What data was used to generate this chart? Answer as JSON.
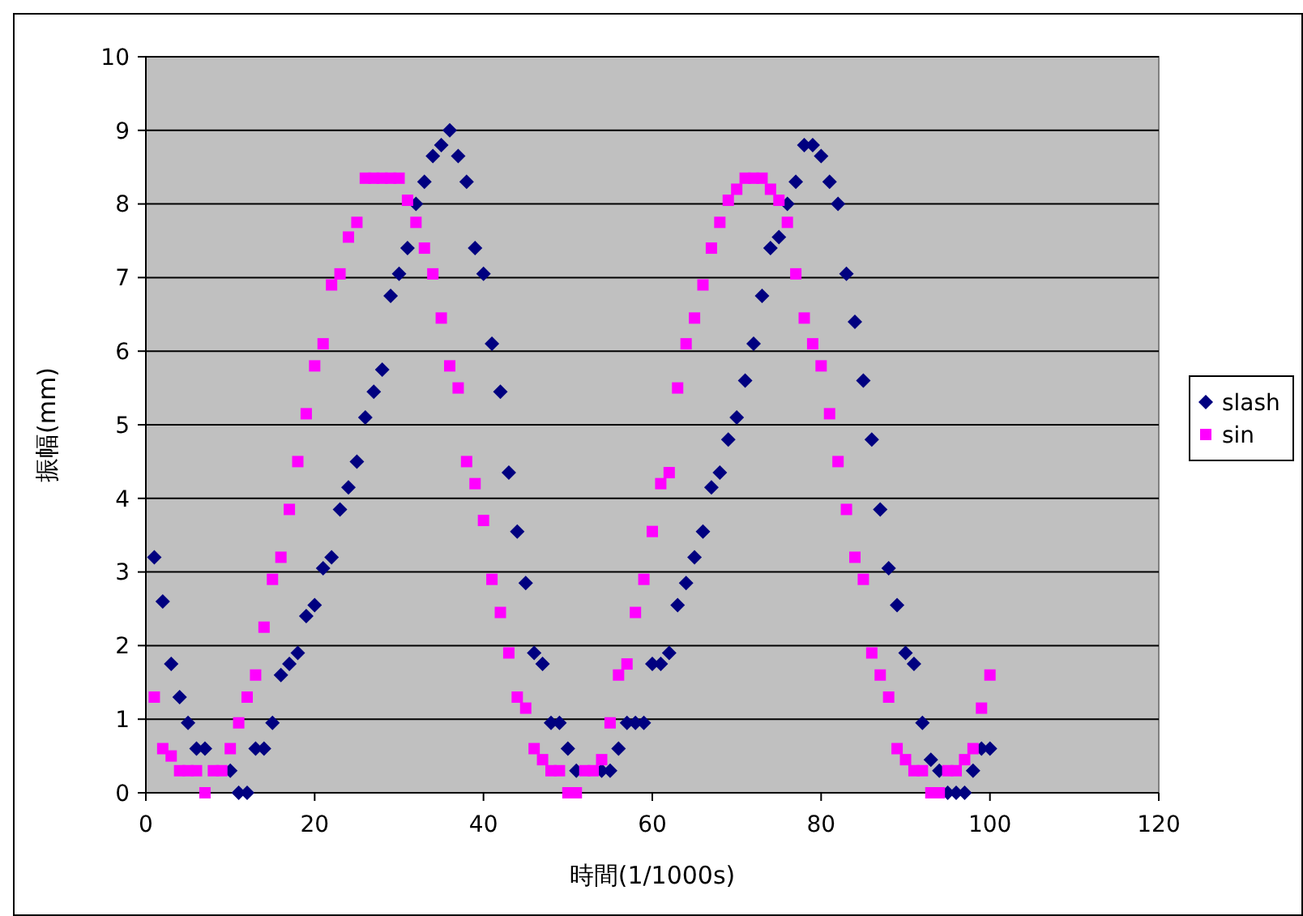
{
  "chart_data": {
    "type": "scatter",
    "xlabel": "時間(1/1000s)",
    "ylabel": "振幅(mm)",
    "xlim": [
      0,
      120
    ],
    "xticks": [
      0,
      20,
      40,
      60,
      80,
      100,
      120
    ],
    "ylim": [
      0,
      10
    ],
    "yticks": [
      0,
      1,
      2,
      3,
      4,
      5,
      6,
      7,
      8,
      9,
      10
    ],
    "grid": "y",
    "legend": "right",
    "x": [
      1,
      2,
      3,
      4,
      5,
      6,
      7,
      8,
      9,
      10,
      11,
      12,
      13,
      14,
      15,
      16,
      17,
      18,
      19,
      20,
      21,
      22,
      23,
      24,
      25,
      26,
      27,
      28,
      29,
      30,
      31,
      32,
      33,
      34,
      35,
      36,
      37,
      38,
      39,
      40,
      41,
      42,
      43,
      44,
      45,
      46,
      47,
      48,
      49,
      50,
      51,
      52,
      53,
      54,
      55,
      56,
      57,
      58,
      59,
      60,
      61,
      62,
      63,
      64,
      65,
      66,
      67,
      68,
      69,
      70,
      71,
      72,
      73,
      74,
      75,
      76,
      77,
      78,
      79,
      80,
      81,
      82,
      83,
      84,
      85,
      86,
      87,
      88,
      89,
      90,
      91,
      92,
      93,
      94,
      95,
      96,
      97,
      98,
      99,
      100
    ],
    "series": [
      {
        "name": "slash",
        "color": "#000080",
        "marker": "diamond",
        "values": [
          3.2,
          2.6,
          1.75,
          1.3,
          0.95,
          0.6,
          0.6,
          null,
          null,
          0.3,
          0,
          0,
          0.6,
          0.6,
          0.95,
          1.6,
          1.75,
          1.9,
          2.4,
          2.55,
          3.05,
          3.2,
          3.85,
          4.15,
          4.5,
          5.1,
          5.45,
          5.75,
          6.75,
          7.05,
          7.4,
          8,
          8.3,
          8.65,
          8.8,
          9,
          8.65,
          8.3,
          7.4,
          7.05,
          6.1,
          5.45,
          4.35,
          3.55,
          2.85,
          1.9,
          1.75,
          0.95,
          0.95,
          0.6,
          0.3,
          null,
          null,
          0.3,
          0.3,
          0.6,
          0.95,
          0.95,
          0.95,
          1.75,
          1.75,
          1.9,
          2.55,
          2.85,
          3.2,
          3.55,
          4.15,
          4.35,
          4.8,
          5.1,
          5.6,
          6.1,
          6.75,
          7.4,
          7.55,
          8,
          8.3,
          8.8,
          8.8,
          8.65,
          8.3,
          8,
          7.05,
          6.4,
          5.6,
          4.8,
          3.85,
          3.05,
          2.55,
          1.9,
          1.75,
          0.95,
          0.45,
          0.3,
          0,
          0,
          0,
          0.3,
          0.6,
          0.6
        ]
      },
      {
        "name": "sin",
        "color": "#ff00ff",
        "marker": "square",
        "values": [
          1.3,
          0.6,
          0.5,
          0.3,
          0.3,
          0.3,
          0,
          0.3,
          0.3,
          0.6,
          0.95,
          1.3,
          1.6,
          2.25,
          2.9,
          3.2,
          3.85,
          4.5,
          5.15,
          5.8,
          6.1,
          6.9,
          7.05,
          7.55,
          7.75,
          8.35,
          8.35,
          8.35,
          8.35,
          8.35,
          8.05,
          7.75,
          7.4,
          7.05,
          6.45,
          5.8,
          5.5,
          4.5,
          4.2,
          3.7,
          2.9,
          2.45,
          1.9,
          1.3,
          1.15,
          0.6,
          0.45,
          0.3,
          0.3,
          0,
          0,
          0.3,
          0.3,
          0.45,
          0.95,
          1.6,
          1.75,
          2.45,
          2.9,
          3.55,
          4.2,
          4.35,
          5.5,
          6.1,
          6.45,
          6.9,
          7.4,
          7.75,
          8.05,
          8.2,
          8.35,
          8.35,
          8.35,
          8.2,
          8.05,
          7.75,
          7.05,
          6.45,
          6.1,
          5.8,
          5.15,
          4.5,
          3.85,
          3.2,
          2.9,
          1.9,
          1.6,
          1.3,
          0.6,
          0.45,
          0.3,
          0.3,
          0,
          0,
          0.3,
          0.3,
          0.45,
          0.6,
          1.15,
          1.6
        ]
      }
    ]
  }
}
